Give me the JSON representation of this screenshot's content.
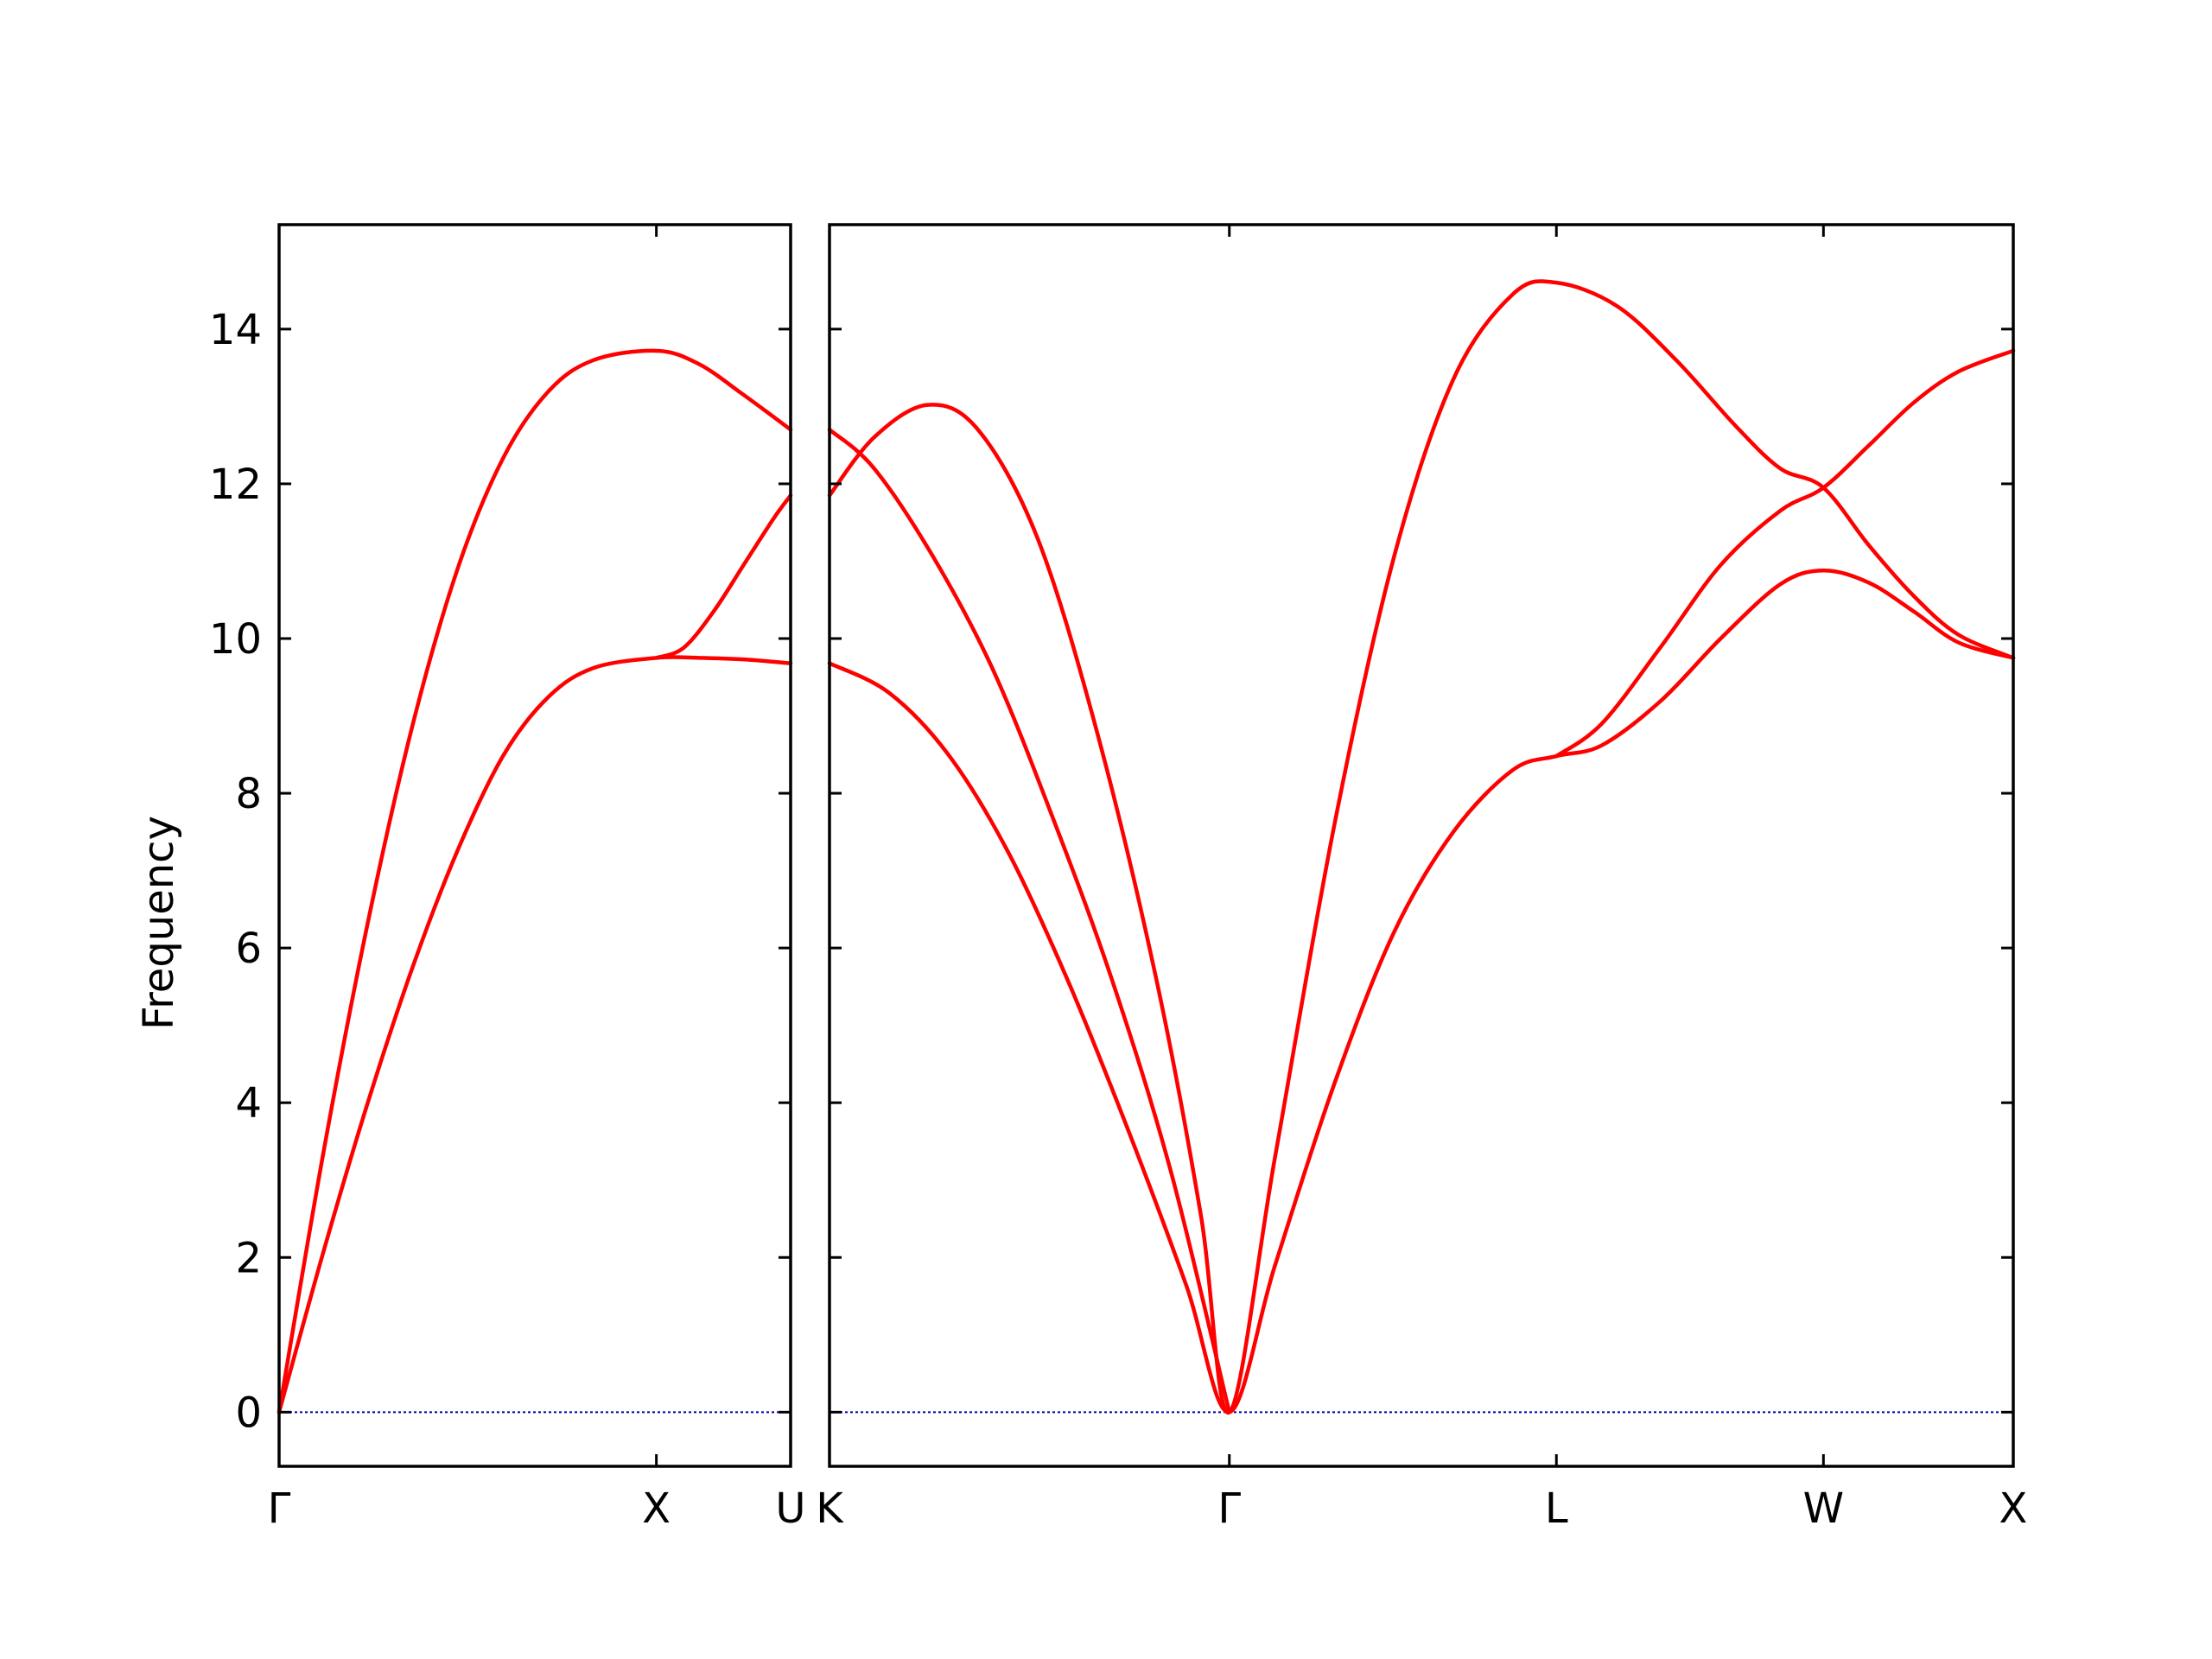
{
  "chart_data": {
    "type": "line",
    "title": "",
    "ylabel": "Frequency",
    "ylim": [
      -0.7,
      15.35
    ],
    "yticks": [
      0,
      2,
      4,
      6,
      8,
      10,
      12,
      14
    ],
    "line_color": "#ff0000",
    "zero_line_color": "#0000aa",
    "grid": false,
    "legend": "none",
    "panels": [
      {
        "xlim": [
          0,
          1.707
        ],
        "xticks": [
          {
            "x": 0,
            "label": "Γ"
          },
          {
            "x": 1.259,
            "label": "X"
          },
          {
            "x": 1.707,
            "label": "U"
          }
        ],
        "series": [
          {
            "points": [
              [
                0,
                0
              ],
              [
                0.15,
                3.4
              ],
              [
                0.3,
                6.4
              ],
              [
                0.45,
                8.95
              ],
              [
                0.6,
                10.95
              ],
              [
                0.75,
                12.35
              ],
              [
                0.9,
                13.2
              ],
              [
                1.05,
                13.6
              ],
              [
                1.259,
                13.72
              ],
              [
                1.4,
                13.55
              ],
              [
                1.55,
                13.15
              ],
              [
                1.707,
                12.7
              ]
            ]
          },
          {
            "points": [
              [
                0,
                0
              ],
              [
                0.15,
                2.1
              ],
              [
                0.3,
                4.05
              ],
              [
                0.45,
                5.8
              ],
              [
                0.6,
                7.3
              ],
              [
                0.75,
                8.5
              ],
              [
                0.9,
                9.25
              ],
              [
                1.05,
                9.62
              ],
              [
                1.259,
                9.75
              ],
              [
                1.4,
                9.75
              ],
              [
                1.55,
                9.73
              ],
              [
                1.707,
                9.68
              ]
            ]
          },
          {
            "points": [
              [
                1.259,
                9.75
              ],
              [
                1.35,
                9.88
              ],
              [
                1.45,
                10.35
              ],
              [
                1.55,
                10.95
              ],
              [
                1.65,
                11.55
              ],
              [
                1.707,
                11.85
              ]
            ]
          }
        ]
      },
      {
        "xlim": [
          0,
          3.985
        ],
        "xticks": [
          {
            "x": 0,
            "label": "K"
          },
          {
            "x": 1.346,
            "label": "Γ"
          },
          {
            "x": 2.447,
            "label": "L"
          },
          {
            "x": 3.346,
            "label": "W"
          },
          {
            "x": 3.985,
            "label": "X"
          }
        ],
        "series": [
          {
            "points": [
              [
                0,
                11.85
              ],
              [
                0.15,
                12.6
              ],
              [
                0.33,
                13.02
              ],
              [
                0.5,
                12.7
              ],
              [
                0.7,
                11.3
              ],
              [
                0.9,
                8.8
              ],
              [
                1.1,
                5.6
              ],
              [
                1.25,
                2.55
              ],
              [
                1.346,
                0
              ],
              [
                1.5,
                3.3
              ],
              [
                1.7,
                7.6
              ],
              [
                1.9,
                11.05
              ],
              [
                2.1,
                13.35
              ],
              [
                2.3,
                14.45
              ],
              [
                2.447,
                14.6
              ],
              [
                2.65,
                14.3
              ],
              [
                2.85,
                13.6
              ],
              [
                3.05,
                12.75
              ],
              [
                3.2,
                12.2
              ],
              [
                3.346,
                11.95
              ],
              [
                3.5,
                11.2
              ],
              [
                3.65,
                10.55
              ],
              [
                3.8,
                10.05
              ],
              [
                3.985,
                9.75
              ]
            ]
          },
          {
            "points": [
              [
                0,
                12.7
              ],
              [
                0.15,
                12.2
              ],
              [
                0.35,
                11.05
              ],
              [
                0.55,
                9.6
              ],
              [
                0.75,
                7.7
              ],
              [
                0.95,
                5.6
              ],
              [
                1.15,
                3.1
              ],
              [
                1.346,
                0
              ]
            ]
          },
          {
            "points": [
              [
                0,
                9.68
              ],
              [
                0.2,
                9.3
              ],
              [
                0.4,
                8.5
              ],
              [
                0.6,
                7.25
              ],
              [
                0.8,
                5.6
              ],
              [
                1.0,
                3.7
              ],
              [
                1.2,
                1.65
              ],
              [
                1.346,
                0
              ],
              [
                1.5,
                1.9
              ],
              [
                1.7,
                4.25
              ],
              [
                1.9,
                6.2
              ],
              [
                2.1,
                7.5
              ],
              [
                2.3,
                8.3
              ],
              [
                2.447,
                8.48
              ],
              [
                2.6,
                8.62
              ],
              [
                2.8,
                9.2
              ],
              [
                3.0,
                10.0
              ],
              [
                3.2,
                10.7
              ],
              [
                3.346,
                10.88
              ],
              [
                3.5,
                10.72
              ],
              [
                3.65,
                10.35
              ],
              [
                3.8,
                9.95
              ],
              [
                3.985,
                9.75
              ]
            ]
          },
          {
            "points": [
              [
                2.447,
                8.48
              ],
              [
                2.6,
                8.9
              ],
              [
                2.8,
                9.9
              ],
              [
                3.0,
                10.95
              ],
              [
                3.2,
                11.65
              ],
              [
                3.346,
                11.95
              ],
              [
                3.5,
                12.5
              ],
              [
                3.65,
                13.05
              ],
              [
                3.8,
                13.45
              ],
              [
                3.985,
                13.72
              ]
            ]
          }
        ]
      }
    ]
  }
}
